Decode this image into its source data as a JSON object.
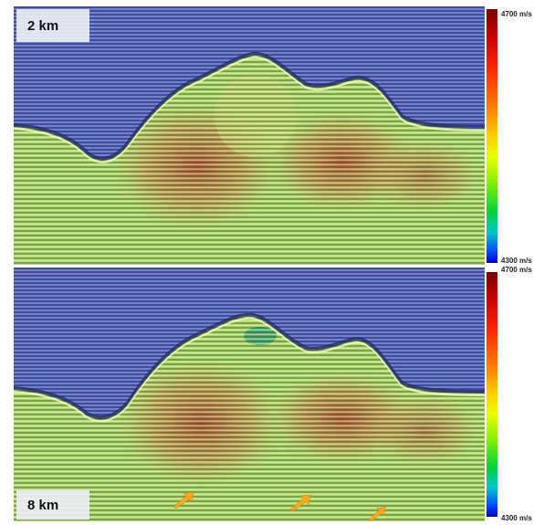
{
  "panels": [
    {
      "label": "2 km",
      "colorbar": {
        "max_label": "4700 m/s",
        "min_label": "4300 m/s"
      }
    },
    {
      "label": "8 km",
      "colorbar": {
        "max_label": "4700 m/s",
        "min_label": "4300 m/s"
      }
    }
  ],
  "colors": {
    "water_blue": "#5f6fc8",
    "sediment_green": "#a8d96a",
    "anomaly_red": "#b8553a",
    "arrow_orange": "#f5a623"
  }
}
